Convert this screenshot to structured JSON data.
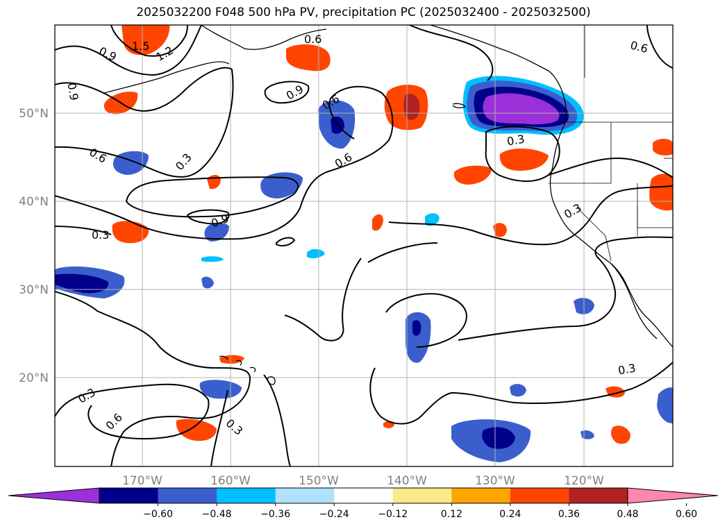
{
  "title": "2025032200 F048 500 hPa PV, precipitation PC (2025032400 - 2025032500)",
  "map": {
    "lon_range": [
      -180,
      -110
    ],
    "lat_range": [
      10,
      60
    ],
    "longitude_ticks": [
      {
        "lon": -170,
        "label": "170°W"
      },
      {
        "lon": -160,
        "label": "160°W"
      },
      {
        "lon": -150,
        "label": "150°W"
      },
      {
        "lon": -140,
        "label": "140°W"
      },
      {
        "lon": -130,
        "label": "130°W"
      },
      {
        "lon": -120,
        "label": "120°W"
      }
    ],
    "latitude_ticks": [
      {
        "lat": 50,
        "label": "50°N"
      },
      {
        "lat": 40,
        "label": "40°N"
      },
      {
        "lat": 30,
        "label": "30°N"
      },
      {
        "lat": 20,
        "label": "20°N"
      }
    ],
    "gridlines": true,
    "contour_labels": [
      {
        "text": "1.5",
        "lon": -180,
        "lat": 0
      },
      {
        "text": "1.2"
      },
      {
        "text": "0.9"
      },
      {
        "text": "0.6"
      },
      {
        "text": "0.3"
      }
    ],
    "contour_levels_shown": [
      "1.5",
      "1.2",
      "0.9",
      "0.6",
      "0.3"
    ]
  },
  "colorbar": {
    "extend": "both",
    "ticks": [
      "−0.60",
      "−0.48",
      "−0.36",
      "−0.24",
      "−0.12",
      "0.12",
      "0.24",
      "0.36",
      "0.48",
      "0.60"
    ],
    "colors": [
      "#9b30d9",
      "#00008b",
      "#3a5fcd",
      "#00bfff",
      "#b0e2ff",
      "#ffffff",
      "#fce98a",
      "#ffa500",
      "#ff4500",
      "#b22222",
      "#ff88aa"
    ]
  }
}
